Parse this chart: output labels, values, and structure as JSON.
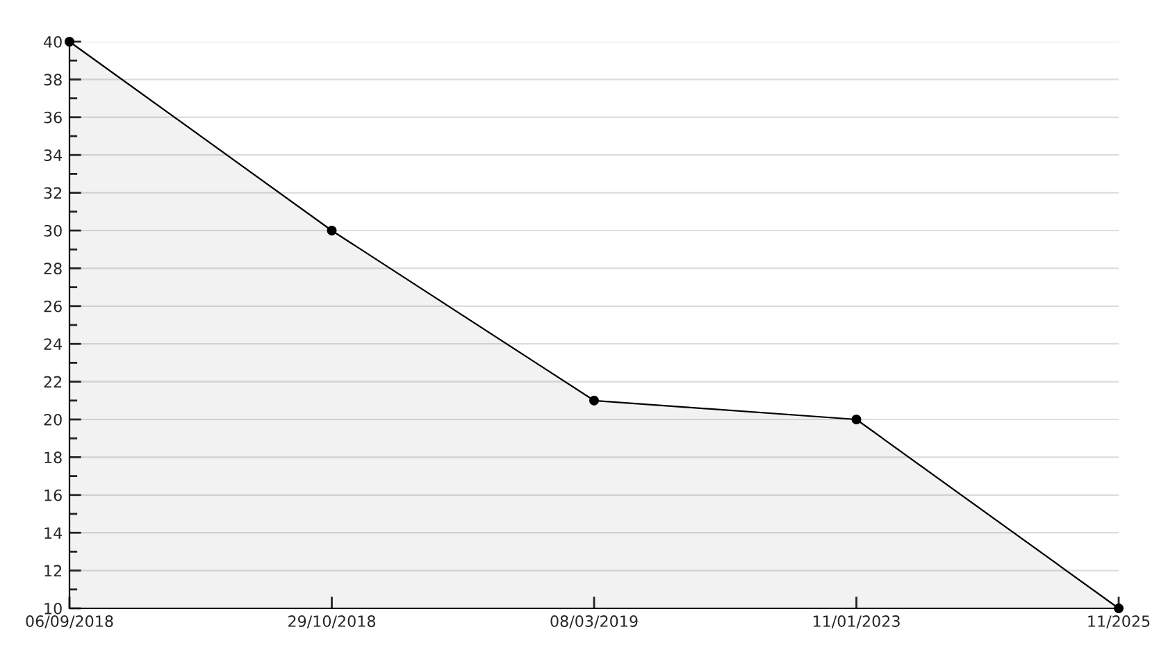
{
  "chart_data": {
    "type": "area",
    "categories": [
      "06/09/2018",
      "29/10/2018",
      "08/03/2019",
      "11/01/2023",
      "11/2025"
    ],
    "series": [
      {
        "color": "#000000",
        "values": [
          40,
          30,
          21,
          20,
          10
        ]
      }
    ],
    "ylim": [
      10,
      40
    ],
    "yticks": [
      10,
      12,
      14,
      16,
      18,
      20,
      22,
      24,
      26,
      28,
      30,
      32,
      34,
      36,
      38,
      40
    ],
    "grid": "y",
    "marker": "circle",
    "line_style": "solid",
    "legend": false
  }
}
